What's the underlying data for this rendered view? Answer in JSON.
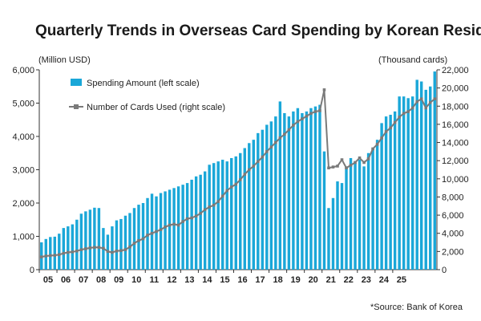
{
  "chart_data": {
    "type": "bar+line",
    "title": "Quarterly Trends in Overseas Card Spending by Korean Residents",
    "left_unit": "(Million USD)",
    "right_unit": "(Thousand cards)",
    "source": "*Source: Bank of Korea",
    "legend": [
      {
        "name": "Spending Amount (left scale)",
        "kind": "bar"
      },
      {
        "name": "Number of Cards Used (right scale)",
        "kind": "line"
      }
    ],
    "y_left": {
      "min": 0,
      "max": 6000,
      "ticks": [
        0,
        1000,
        2000,
        3000,
        4000,
        5000,
        6000
      ],
      "tick_labels": [
        "0",
        "1,000",
        "2,000",
        "3,000",
        "4,000",
        "5,000",
        "6,000"
      ]
    },
    "y_right": {
      "min": 0,
      "max": 22000,
      "ticks": [
        0,
        2000,
        4000,
        6000,
        8000,
        10000,
        12000,
        14000,
        16000,
        18000,
        20000,
        22000
      ],
      "tick_labels": [
        "0",
        "2,000",
        "4,000",
        "6,000",
        "8,000",
        "10,000",
        "12,000",
        "14,000",
        "16,000",
        "18,000",
        "20,000",
        "22,000"
      ]
    },
    "x_labels": [
      "05",
      "06",
      "07",
      "08",
      "09",
      "10",
      "11",
      "12",
      "13",
      "14",
      "15",
      "16",
      "17",
      "18",
      "19",
      "20",
      "21",
      "22",
      "23",
      "24",
      "25"
    ],
    "colors": {
      "bar": "#1aa7d8",
      "line": "#7a7a7a",
      "axis": "#333333"
    },
    "series": [
      {
        "name": "Spending Amount (left scale)",
        "axis": "left",
        "kind": "bar",
        "values": [
          820,
          920,
          980,
          990,
          1080,
          1250,
          1300,
          1360,
          1500,
          1680,
          1750,
          1800,
          1860,
          1850,
          1250,
          1050,
          1300,
          1480,
          1520,
          1620,
          1700,
          1850,
          1950,
          2000,
          2150,
          2280,
          2200,
          2300,
          2350,
          2400,
          2450,
          2500,
          2550,
          2600,
          2700,
          2800,
          2850,
          2950,
          3150,
          3200,
          3250,
          3300,
          3250,
          3350,
          3400,
          3500,
          3650,
          3800,
          3900,
          4100,
          4200,
          4350,
          4450,
          4600,
          5050,
          4700,
          4600,
          4750,
          4850,
          4700,
          4750,
          4850,
          4900,
          4950,
          3550,
          1850,
          2150,
          2650,
          2600,
          3100,
          3350,
          3200,
          3300,
          3100,
          3500,
          3650,
          3900,
          4400,
          4600,
          4650,
          4750,
          5200,
          5200,
          5150,
          5200,
          5700,
          5650,
          5400,
          5500,
          5950
        ]
      },
      {
        "name": "Number of Cards Used (right scale)",
        "axis": "right",
        "kind": "line",
        "values": [
          1400,
          1500,
          1550,
          1580,
          1650,
          1800,
          1900,
          1950,
          2050,
          2200,
          2300,
          2400,
          2450,
          2450,
          2350,
          2000,
          1900,
          2050,
          2100,
          2200,
          2500,
          2900,
          3200,
          3400,
          3800,
          4000,
          4200,
          4400,
          4700,
          4900,
          5000,
          4900,
          5300,
          5600,
          5700,
          5900,
          6200,
          6600,
          6900,
          7100,
          7500,
          8100,
          8700,
          9100,
          9400,
          9900,
          10500,
          11000,
          11400,
          11900,
          12400,
          13000,
          13500,
          14000,
          14500,
          14900,
          15400,
          15900,
          16300,
          16600,
          16900,
          17200,
          17400,
          17500,
          19800,
          11200,
          11300,
          11400,
          12100,
          11200,
          11500,
          11800,
          12300,
          11800,
          12200,
          13300,
          13800,
          14500,
          15200,
          15600,
          16200,
          16800,
          17200,
          17400,
          17800,
          18500,
          18800,
          17800,
          18400,
          18800
        ]
      }
    ]
  }
}
